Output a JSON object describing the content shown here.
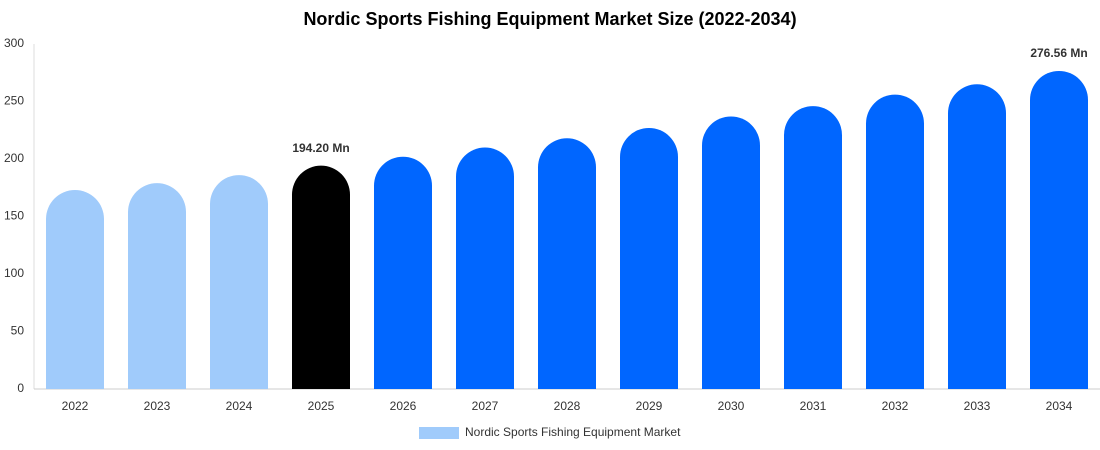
{
  "chart_data": {
    "type": "bar",
    "title": "Nordic Sports Fishing Equipment Market Size (2022-2034)",
    "categories": [
      "2022",
      "2023",
      "2024",
      "2025",
      "2026",
      "2027",
      "2028",
      "2029",
      "2030",
      "2031",
      "2032",
      "2033",
      "2034"
    ],
    "series": [
      {
        "name": "Nordic Sports Fishing Equipment Market",
        "color": "#a0cbfb",
        "colors": [
          "#a0cbfb",
          "#a0cbfb",
          "#a0cbfb",
          "#000000",
          "#0066ff",
          "#0066ff",
          "#0066ff",
          "#0066ff",
          "#0066ff",
          "#0066ff",
          "#0066ff",
          "#0066ff",
          "#0066ff"
        ],
        "values": [
          173,
          179,
          186,
          194.2,
          202,
          210,
          218,
          227,
          237,
          246,
          256,
          265,
          276.56
        ],
        "value_labels": [
          null,
          null,
          null,
          "194.20 Mn",
          null,
          null,
          null,
          null,
          null,
          null,
          null,
          null,
          "276.56 Mn"
        ]
      }
    ],
    "ylim": [
      0,
      300
    ],
    "yticks": [
      0,
      50,
      100,
      150,
      200,
      250,
      300
    ],
    "grid": false
  }
}
